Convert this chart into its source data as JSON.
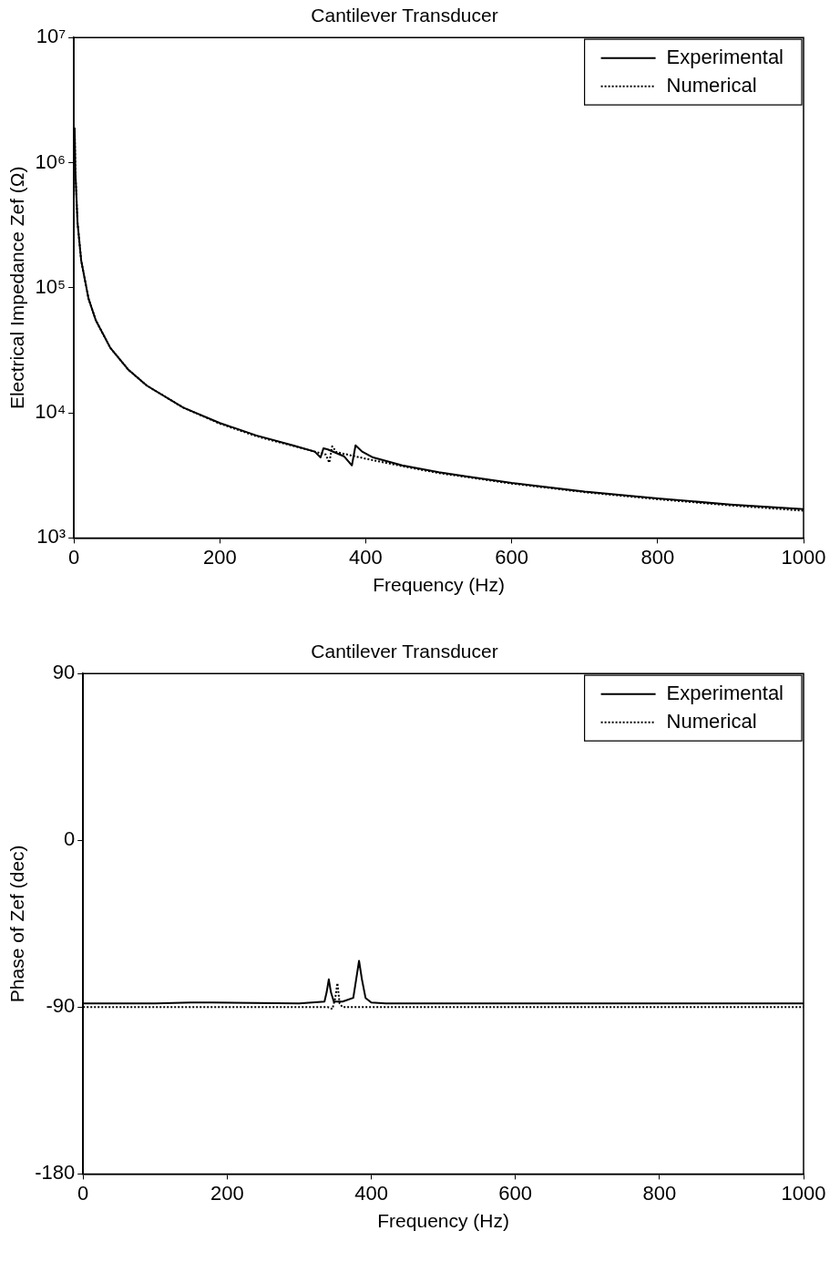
{
  "chart_data": [
    {
      "type": "line",
      "title": "Cantilever Transducer",
      "xlabel": "Frequency (Hz)",
      "ylabel": "Electrical Impedance Zef (Ω)",
      "log": "y",
      "legend": "top right",
      "xlim": [
        0,
        1000
      ],
      "xticks": [
        0,
        200,
        400,
        600,
        800,
        1000
      ],
      "ylim": [
        1000,
        10000000
      ],
      "yticks": [
        {
          "value": 1000,
          "label": "10³"
        },
        {
          "value": 10000,
          "label": "10⁴"
        },
        {
          "value": 100000,
          "label": "10⁵"
        },
        {
          "value": 1000000,
          "label": "10⁶"
        },
        {
          "value": 10000000,
          "label": "10⁷"
        }
      ],
      "series": [
        {
          "name": "Experimental",
          "color": "#000000",
          "line_style": "solid",
          "x": [
            1,
            2,
            5,
            10,
            20,
            30,
            50,
            75,
            100,
            150,
            200,
            250,
            300,
            330,
            338,
            342,
            348,
            370,
            381,
            386,
            395,
            410,
            450,
            500,
            600,
            700,
            800,
            900,
            1000
          ],
          "values": [
            1900000,
            850000,
            330000,
            165000,
            82000,
            55000,
            33000,
            22000,
            16500,
            11000,
            8300,
            6600,
            5500,
            4900,
            4400,
            5200,
            5100,
            4500,
            3800,
            5500,
            4900,
            4400,
            3800,
            3350,
            2750,
            2350,
            2070,
            1850,
            1700
          ]
        },
        {
          "name": "Numerical",
          "color": "#000000",
          "line_style": "dotted",
          "x": [
            1,
            2,
            5,
            10,
            20,
            30,
            50,
            75,
            100,
            150,
            200,
            250,
            300,
            330,
            345,
            350,
            354,
            360,
            400,
            450,
            500,
            600,
            700,
            800,
            900,
            1000
          ],
          "values": [
            1900000,
            850000,
            330000,
            165000,
            82000,
            55000,
            33000,
            22000,
            16500,
            11000,
            8200,
            6500,
            5450,
            4900,
            4650,
            4000,
            5400,
            4850,
            4300,
            3750,
            3300,
            2720,
            2320,
            2040,
            1820,
            1650
          ]
        }
      ]
    },
    {
      "type": "line",
      "title": "Cantilever Transducer",
      "xlabel": "Frequency (Hz)",
      "ylabel": "Phase of Zef (dec)",
      "legend": "top right",
      "xlim": [
        0,
        1000
      ],
      "xticks": [
        0,
        200,
        400,
        600,
        800,
        1000
      ],
      "ylim": [
        -180,
        90
      ],
      "yticks": [
        -180,
        -90,
        0,
        90
      ],
      "series": [
        {
          "name": "Experimental",
          "color": "#000000",
          "line_style": "solid",
          "x": [
            0,
            100,
            150,
            180,
            300,
            335,
            338,
            341,
            344,
            348,
            360,
            375,
            379,
            383,
            387,
            392,
            400,
            420,
            1000
          ],
          "values": [
            -88,
            -88,
            -87.5,
            -87.5,
            -88,
            -87,
            -82,
            -75,
            -82,
            -87,
            -87,
            -85,
            -75,
            -65,
            -75,
            -85,
            -87.5,
            -88,
            -88
          ]
        },
        {
          "name": "Numerical",
          "color": "#000000",
          "line_style": "dotted",
          "x": [
            0,
            340,
            346,
            350,
            353,
            356,
            360,
            1000
          ],
          "values": [
            -90,
            -90,
            -91,
            -85,
            -77,
            -88,
            -90,
            -90
          ]
        }
      ]
    }
  ]
}
